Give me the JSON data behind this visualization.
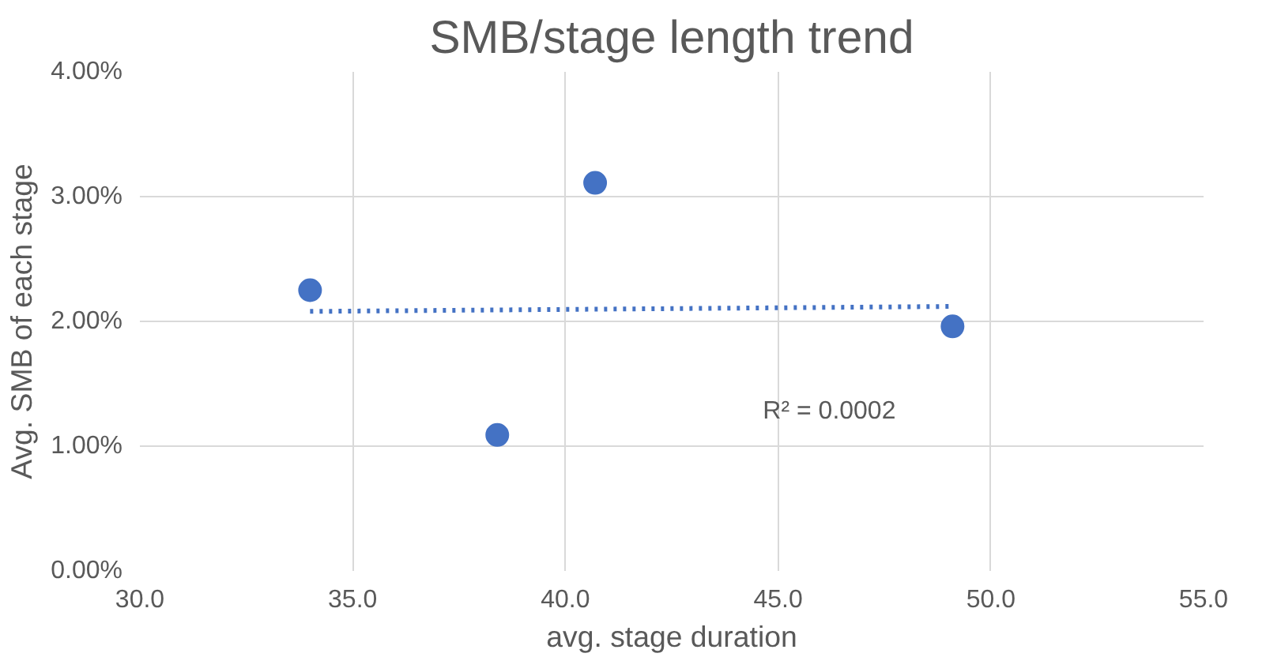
{
  "chart_data": {
    "type": "scatter",
    "title": "SMB/stage length trend",
    "xlabel": "avg. stage duration",
    "ylabel": "Avg. SMB of each stage",
    "series": [
      {
        "color": "#4472c4",
        "x": [
          34.0,
          38.4,
          40.7,
          49.1
        ],
        "values": [
          2.25,
          1.09,
          3.11,
          1.96
        ],
        "marker": "circle"
      },
      {
        "type": "line",
        "color": "#4472c4",
        "x": [
          34.0,
          49.1
        ],
        "values": [
          2.08,
          2.12
        ],
        "line_style": "dotted"
      }
    ],
    "xlim": [
      30,
      55
    ],
    "xticks": [
      {
        "value": 30,
        "label": "30.0"
      },
      {
        "value": 35,
        "label": "35.0"
      },
      {
        "value": 40,
        "label": "40.0"
      },
      {
        "value": 45,
        "label": "45.0"
      },
      {
        "value": 50,
        "label": "50.0"
      },
      {
        "value": 55,
        "label": "55.0"
      }
    ],
    "ylim": [
      0,
      4
    ],
    "yticks": [
      {
        "value": 0,
        "label": "0.00%"
      },
      {
        "value": 1,
        "label": "1.00%"
      },
      {
        "value": 2,
        "label": "2.00%"
      },
      {
        "value": 3,
        "label": "3.00%"
      },
      {
        "value": 4,
        "label": "4.00%"
      }
    ],
    "grid": true,
    "annotations": [
      "R² = 0.0002"
    ]
  }
}
